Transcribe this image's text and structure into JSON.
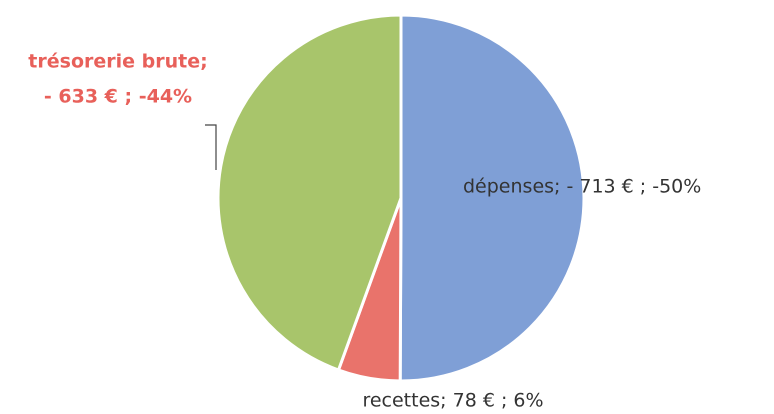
{
  "chart_data": {
    "type": "pie",
    "categories": [
      "dépenses",
      "recettes",
      "trésorerie brute"
    ],
    "values": [
      -713,
      78,
      -633
    ],
    "percents": [
      -50,
      6,
      -44
    ],
    "colors": [
      "#7f9fd6",
      "#e9736b",
      "#a8c56b"
    ],
    "labels": [
      [
        "dépenses; - 713 € ; -50%"
      ],
      [
        "recettes;  78 € ; 6%"
      ],
      [
        "trésorerie brute;",
        "- 633 € ; -44%"
      ]
    ]
  }
}
